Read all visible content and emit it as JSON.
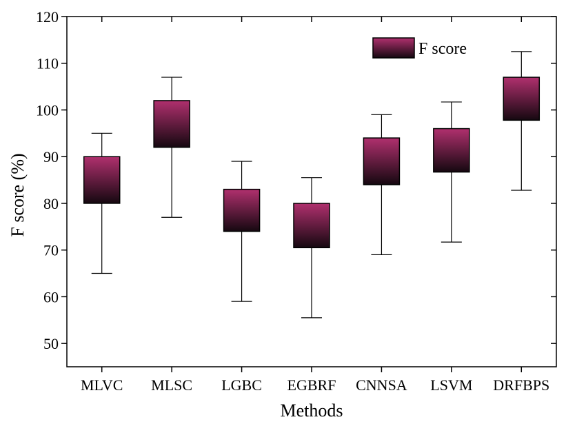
{
  "chart_data": {
    "type": "box",
    "xlabel": "Methods",
    "ylabel": "F score (%)",
    "ylim": [
      45,
      120
    ],
    "yticks": [
      50,
      60,
      70,
      80,
      90,
      100,
      110,
      120
    ],
    "categories": [
      "MLVC",
      "MLSC",
      "LGBC",
      "EGBRF",
      "CNNSA",
      "LSVM",
      "DRFBPS"
    ],
    "series": [
      {
        "name": "F score",
        "color_top": "#b0306e",
        "color_bottom": "#150810",
        "boxes": [
          {
            "min": 65,
            "q1": 80,
            "q3": 90,
            "max": 95
          },
          {
            "min": 77,
            "q1": 92,
            "q3": 102,
            "max": 107
          },
          {
            "min": 59,
            "q1": 74,
            "q3": 83,
            "max": 89
          },
          {
            "min": 55.5,
            "q1": 70.5,
            "q3": 80,
            "max": 85.5
          },
          {
            "min": 69,
            "q1": 84,
            "q3": 94,
            "max": 99
          },
          {
            "min": 71.7,
            "q1": 86.7,
            "q3": 96,
            "max": 101.7
          },
          {
            "min": 82.8,
            "q1": 97.8,
            "q3": 107,
            "max": 112.5
          }
        ]
      }
    ],
    "legend": {
      "position": "top-right"
    },
    "grid": false
  }
}
